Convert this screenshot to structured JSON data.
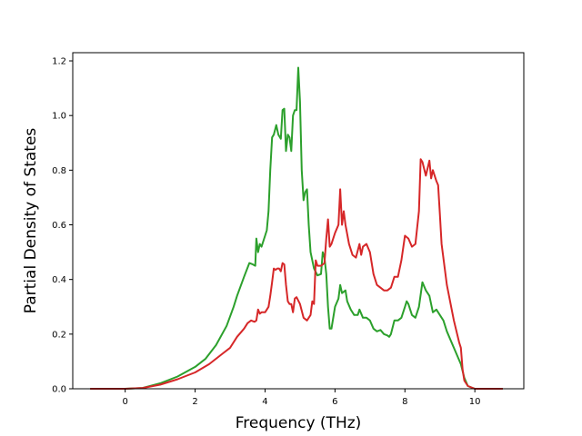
{
  "chart_data": {
    "type": "line",
    "xlabel": "Frequency (THz)",
    "ylabel": "Partial Density of States",
    "xlim": [
      -1.5,
      11.4
    ],
    "ylim": [
      0.0,
      1.23
    ],
    "xticks": [
      0,
      2,
      4,
      6,
      8,
      10
    ],
    "yticks": [
      0.0,
      0.2,
      0.4,
      0.6,
      0.8,
      1.0,
      1.2
    ],
    "xtick_labels": [
      "0",
      "2",
      "4",
      "6",
      "8",
      "10"
    ],
    "ytick_labels": [
      "0.0",
      "0.2",
      "0.4",
      "0.6",
      "0.8",
      "1.0",
      "1.2"
    ],
    "grid": false,
    "series": [
      {
        "color": "#2ca02c",
        "points": [
          [
            -1.0,
            0.0
          ],
          [
            0.0,
            0.0
          ],
          [
            0.5,
            0.003
          ],
          [
            1.0,
            0.02
          ],
          [
            1.5,
            0.045
          ],
          [
            2.0,
            0.08
          ],
          [
            2.3,
            0.11
          ],
          [
            2.6,
            0.16
          ],
          [
            2.9,
            0.23
          ],
          [
            3.1,
            0.3
          ],
          [
            3.2,
            0.34
          ],
          [
            3.4,
            0.41
          ],
          [
            3.55,
            0.46
          ],
          [
            3.65,
            0.455
          ],
          [
            3.72,
            0.45
          ],
          [
            3.75,
            0.55
          ],
          [
            3.8,
            0.5
          ],
          [
            3.85,
            0.53
          ],
          [
            3.9,
            0.52
          ],
          [
            4.0,
            0.56
          ],
          [
            4.05,
            0.58
          ],
          [
            4.1,
            0.65
          ],
          [
            4.15,
            0.8
          ],
          [
            4.2,
            0.92
          ],
          [
            4.25,
            0.93
          ],
          [
            4.32,
            0.965
          ],
          [
            4.38,
            0.93
          ],
          [
            4.45,
            0.915
          ],
          [
            4.5,
            1.02
          ],
          [
            4.55,
            1.025
          ],
          [
            4.6,
            0.87
          ],
          [
            4.65,
            0.93
          ],
          [
            4.7,
            0.92
          ],
          [
            4.75,
            0.87
          ],
          [
            4.8,
            1.0
          ],
          [
            4.85,
            1.02
          ],
          [
            4.9,
            1.02
          ],
          [
            4.95,
            1.175
          ],
          [
            5.0,
            1.05
          ],
          [
            5.05,
            0.8
          ],
          [
            5.1,
            0.69
          ],
          [
            5.15,
            0.72
          ],
          [
            5.2,
            0.73
          ],
          [
            5.25,
            0.6
          ],
          [
            5.3,
            0.5
          ],
          [
            5.4,
            0.44
          ],
          [
            5.5,
            0.415
          ],
          [
            5.6,
            0.42
          ],
          [
            5.65,
            0.5
          ],
          [
            5.7,
            0.48
          ],
          [
            5.75,
            0.42
          ],
          [
            5.8,
            0.3
          ],
          [
            5.85,
            0.22
          ],
          [
            5.9,
            0.22
          ],
          [
            6.0,
            0.3
          ],
          [
            6.1,
            0.33
          ],
          [
            6.15,
            0.38
          ],
          [
            6.2,
            0.35
          ],
          [
            6.3,
            0.36
          ],
          [
            6.35,
            0.32
          ],
          [
            6.45,
            0.29
          ],
          [
            6.55,
            0.27
          ],
          [
            6.65,
            0.27
          ],
          [
            6.7,
            0.29
          ],
          [
            6.8,
            0.26
          ],
          [
            6.9,
            0.26
          ],
          [
            7.0,
            0.25
          ],
          [
            7.1,
            0.22
          ],
          [
            7.2,
            0.21
          ],
          [
            7.3,
            0.215
          ],
          [
            7.4,
            0.2
          ],
          [
            7.5,
            0.195
          ],
          [
            7.55,
            0.19
          ],
          [
            7.6,
            0.2
          ],
          [
            7.7,
            0.25
          ],
          [
            7.8,
            0.25
          ],
          [
            7.9,
            0.26
          ],
          [
            8.0,
            0.3
          ],
          [
            8.05,
            0.32
          ],
          [
            8.1,
            0.31
          ],
          [
            8.2,
            0.27
          ],
          [
            8.3,
            0.26
          ],
          [
            8.4,
            0.3
          ],
          [
            8.5,
            0.39
          ],
          [
            8.6,
            0.36
          ],
          [
            8.7,
            0.34
          ],
          [
            8.8,
            0.28
          ],
          [
            8.9,
            0.29
          ],
          [
            9.0,
            0.27
          ],
          [
            9.1,
            0.25
          ],
          [
            9.2,
            0.21
          ],
          [
            9.4,
            0.15
          ],
          [
            9.6,
            0.09
          ],
          [
            9.7,
            0.04
          ],
          [
            9.8,
            0.01
          ],
          [
            10.0,
            0.0
          ],
          [
            10.8,
            0.0
          ]
        ]
      },
      {
        "color": "#d62728",
        "points": [
          [
            -1.0,
            0.0
          ],
          [
            0.0,
            0.0
          ],
          [
            0.5,
            0.003
          ],
          [
            1.0,
            0.015
          ],
          [
            1.5,
            0.035
          ],
          [
            2.0,
            0.06
          ],
          [
            2.4,
            0.09
          ],
          [
            2.8,
            0.13
          ],
          [
            3.0,
            0.15
          ],
          [
            3.2,
            0.19
          ],
          [
            3.4,
            0.22
          ],
          [
            3.5,
            0.24
          ],
          [
            3.6,
            0.25
          ],
          [
            3.7,
            0.245
          ],
          [
            3.75,
            0.25
          ],
          [
            3.8,
            0.29
          ],
          [
            3.85,
            0.275
          ],
          [
            3.9,
            0.28
          ],
          [
            4.0,
            0.28
          ],
          [
            4.1,
            0.3
          ],
          [
            4.15,
            0.34
          ],
          [
            4.2,
            0.39
          ],
          [
            4.25,
            0.44
          ],
          [
            4.3,
            0.435
          ],
          [
            4.35,
            0.44
          ],
          [
            4.4,
            0.44
          ],
          [
            4.45,
            0.43
          ],
          [
            4.5,
            0.46
          ],
          [
            4.55,
            0.455
          ],
          [
            4.6,
            0.38
          ],
          [
            4.65,
            0.32
          ],
          [
            4.7,
            0.31
          ],
          [
            4.75,
            0.31
          ],
          [
            4.8,
            0.28
          ],
          [
            4.85,
            0.33
          ],
          [
            4.9,
            0.335
          ],
          [
            5.0,
            0.31
          ],
          [
            5.1,
            0.26
          ],
          [
            5.2,
            0.25
          ],
          [
            5.3,
            0.27
          ],
          [
            5.35,
            0.32
          ],
          [
            5.4,
            0.31
          ],
          [
            5.45,
            0.47
          ],
          [
            5.5,
            0.45
          ],
          [
            5.6,
            0.45
          ],
          [
            5.7,
            0.46
          ],
          [
            5.75,
            0.55
          ],
          [
            5.8,
            0.62
          ],
          [
            5.85,
            0.52
          ],
          [
            5.9,
            0.53
          ],
          [
            6.0,
            0.57
          ],
          [
            6.1,
            0.6
          ],
          [
            6.15,
            0.73
          ],
          [
            6.2,
            0.6
          ],
          [
            6.25,
            0.65
          ],
          [
            6.3,
            0.6
          ],
          [
            6.4,
            0.53
          ],
          [
            6.5,
            0.49
          ],
          [
            6.6,
            0.48
          ],
          [
            6.7,
            0.53
          ],
          [
            6.75,
            0.49
          ],
          [
            6.8,
            0.52
          ],
          [
            6.9,
            0.53
          ],
          [
            7.0,
            0.5
          ],
          [
            7.1,
            0.42
          ],
          [
            7.2,
            0.38
          ],
          [
            7.3,
            0.37
          ],
          [
            7.4,
            0.36
          ],
          [
            7.5,
            0.36
          ],
          [
            7.6,
            0.37
          ],
          [
            7.7,
            0.41
          ],
          [
            7.8,
            0.41
          ],
          [
            7.9,
            0.47
          ],
          [
            8.0,
            0.56
          ],
          [
            8.1,
            0.55
          ],
          [
            8.2,
            0.52
          ],
          [
            8.3,
            0.53
          ],
          [
            8.4,
            0.65
          ],
          [
            8.45,
            0.84
          ],
          [
            8.5,
            0.83
          ],
          [
            8.6,
            0.78
          ],
          [
            8.7,
            0.835
          ],
          [
            8.75,
            0.77
          ],
          [
            8.8,
            0.8
          ],
          [
            8.9,
            0.76
          ],
          [
            8.95,
            0.745
          ],
          [
            9.0,
            0.64
          ],
          [
            9.05,
            0.53
          ],
          [
            9.2,
            0.38
          ],
          [
            9.4,
            0.25
          ],
          [
            9.55,
            0.17
          ],
          [
            9.6,
            0.15
          ],
          [
            9.65,
            0.07
          ],
          [
            9.7,
            0.03
          ],
          [
            9.8,
            0.01
          ],
          [
            10.0,
            0.0
          ],
          [
            10.8,
            0.0
          ]
        ]
      }
    ]
  }
}
